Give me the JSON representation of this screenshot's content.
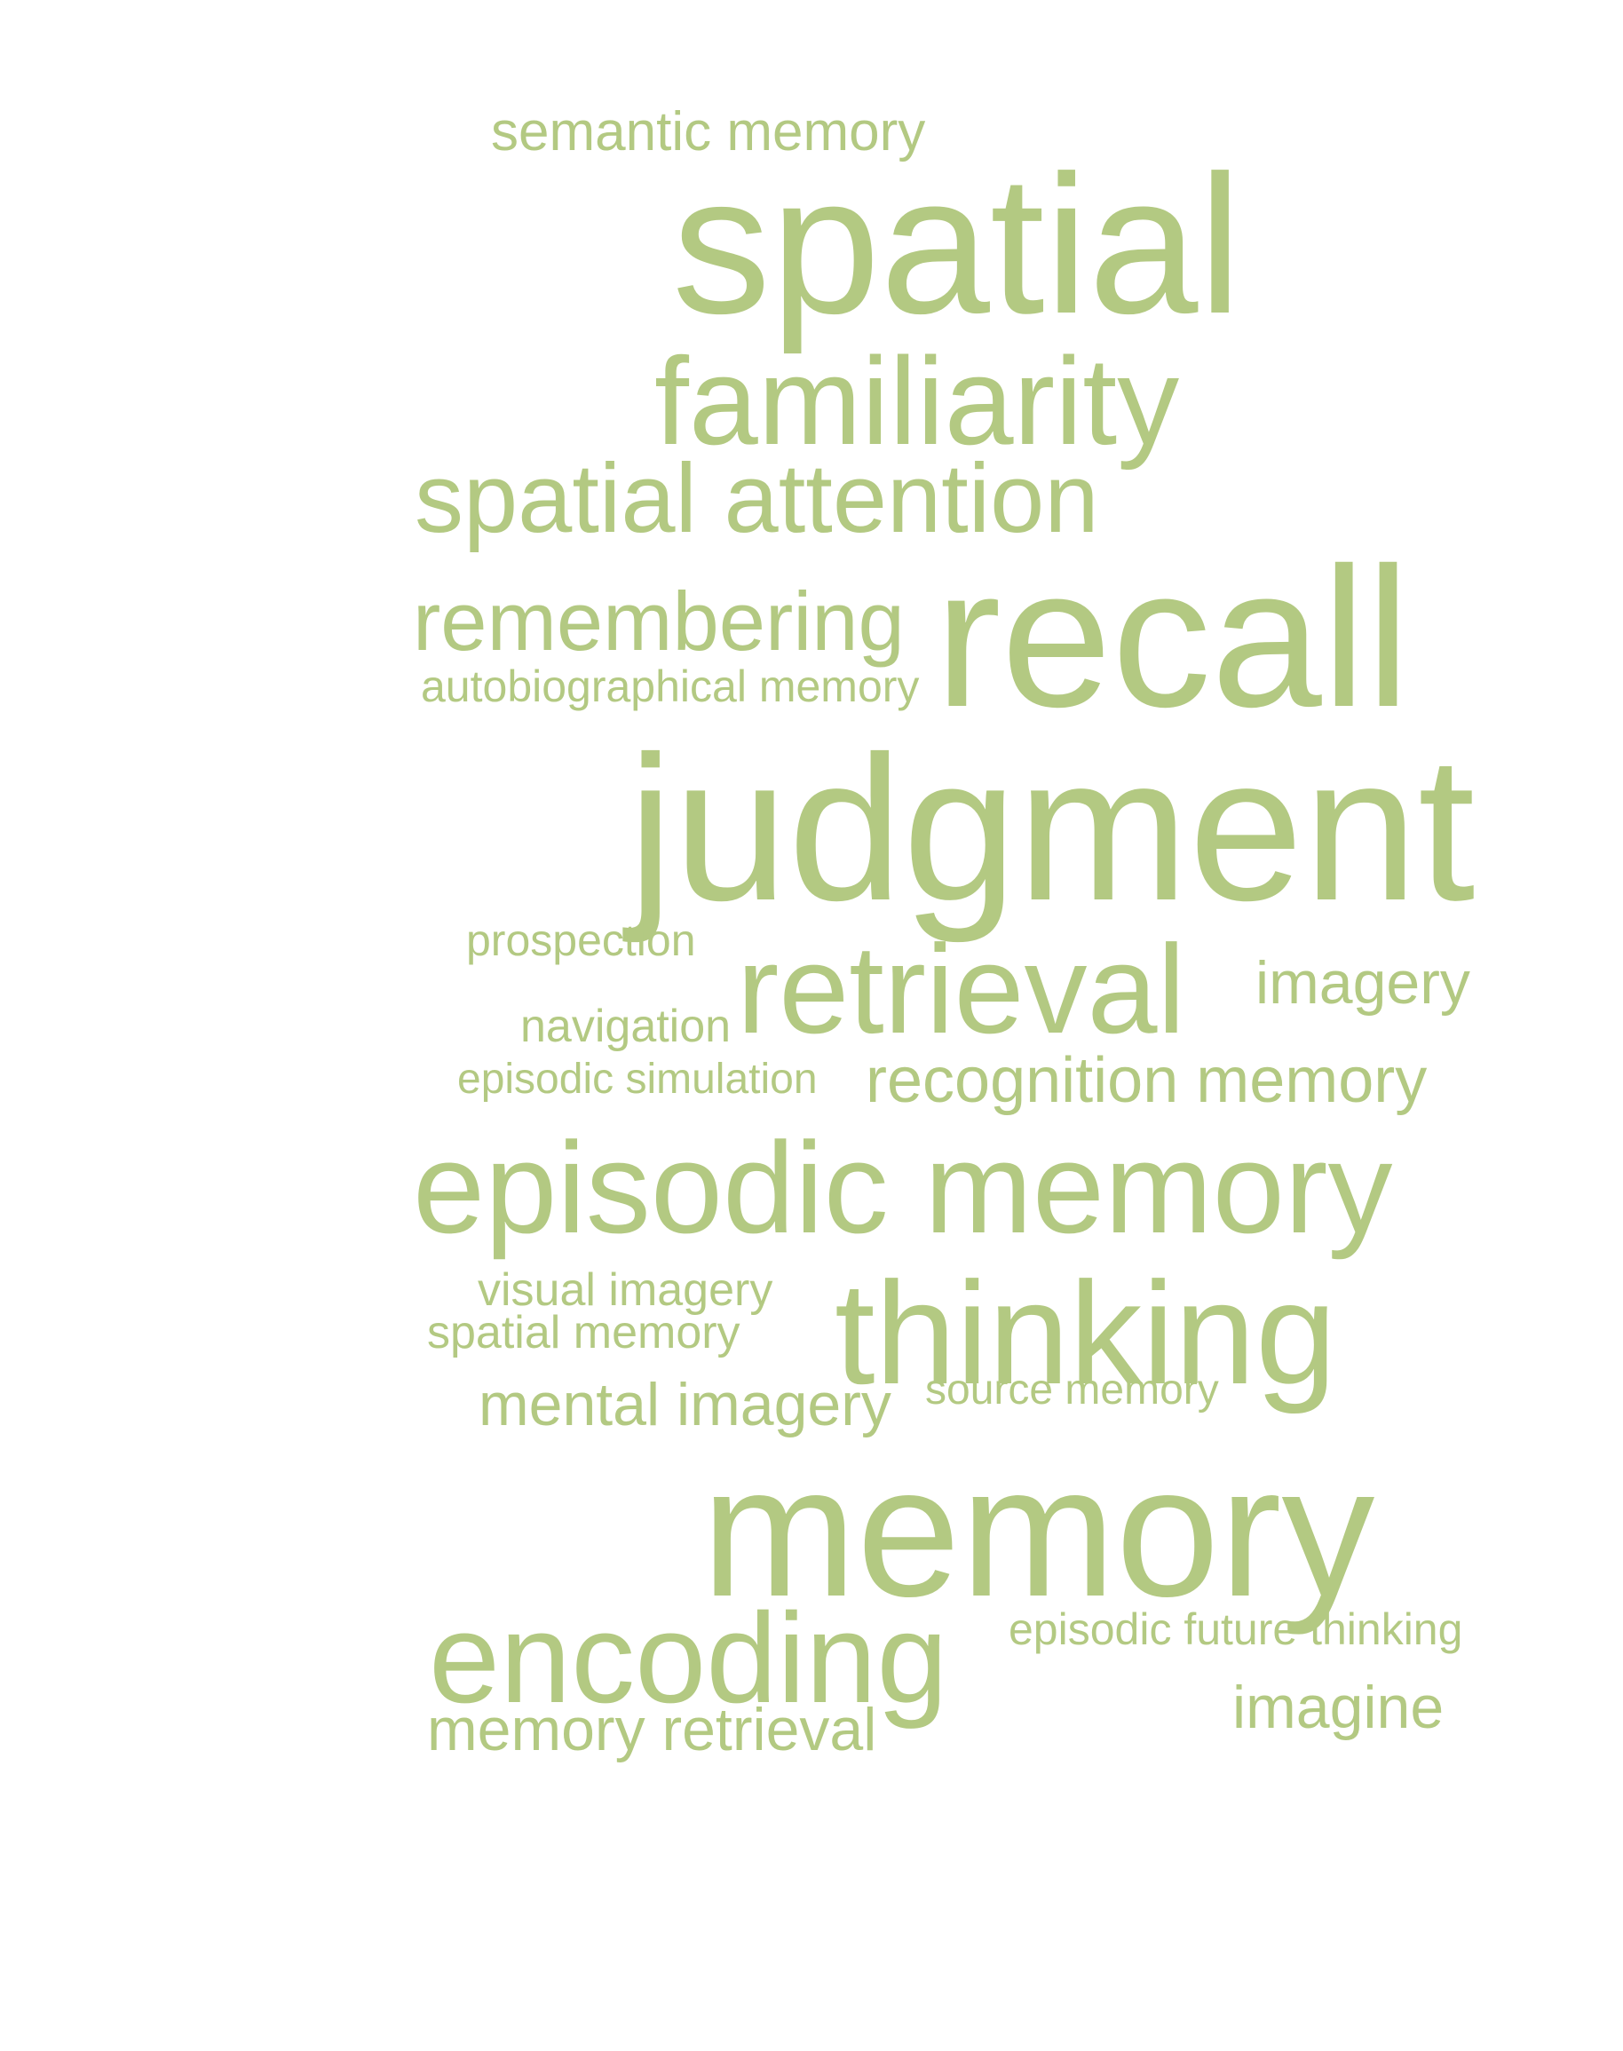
{
  "colors": {
    "word": "#b3c982",
    "background": "#ffffff"
  },
  "words": {
    "semantic_memory": "semantic memory",
    "spatial": "spatial",
    "familiarity": "familiarity",
    "spatial_attention": "spatial attention",
    "remembering": "remembering",
    "autobiographical_memory": "autobiographical memory",
    "recall": "recall",
    "judgment": "judgment",
    "prospection": "prospection",
    "retrieval": "retrieval",
    "imagery": "imagery",
    "navigation": "navigation",
    "episodic_simulation": "episodic simulation",
    "recognition_memory": "recognition memory",
    "episodic_memory": "episodic memory",
    "visual_imagery": "visual imagery",
    "spatial_memory": "spatial memory",
    "thinking": "thinking",
    "mental_imagery": "mental imagery",
    "source_memory": "source memory",
    "memory": "memory",
    "encoding": "encoding",
    "episodic_future_thinking": "episodic future thinking",
    "memory_retrieval": "memory retrieval",
    "imagine": "imagine"
  }
}
